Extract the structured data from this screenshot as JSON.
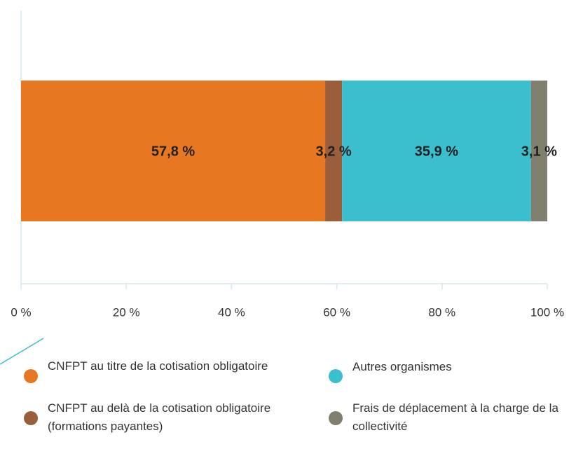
{
  "chart_data": {
    "type": "stacked-barh",
    "categories": [
      null
    ],
    "series": [
      {
        "name": "CNFPT au titre de la cotisation obligatoire",
        "color": "#e87722",
        "values": [
          57.8
        ],
        "value_labels": [
          "57,8 %"
        ]
      },
      {
        "name": "CNFPT au delà de la cotisation obligatoire (formations payantes)",
        "color": "#9b5e3a",
        "values": [
          3.2
        ],
        "value_labels": [
          "3,2 %"
        ]
      },
      {
        "name": "Autres organismes",
        "color": "#3bbfcf",
        "values": [
          35.9
        ],
        "value_labels": [
          "35,9 %"
        ]
      },
      {
        "name": "Frais de déplacement à la charge de la collectivité",
        "color": "#807f6e",
        "values": [
          3.1
        ],
        "value_labels": [
          "3,1 %"
        ]
      }
    ],
    "xlim": [
      0,
      100
    ],
    "xticks": [
      {
        "value": 0,
        "label": "0 %"
      },
      {
        "value": 20,
        "label": "20 %"
      },
      {
        "value": 40,
        "label": "40 %"
      },
      {
        "value": 60,
        "label": "60 %"
      },
      {
        "value": 80,
        "label": "80 %"
      },
      {
        "value": 100,
        "label": "100 %"
      }
    ]
  }
}
